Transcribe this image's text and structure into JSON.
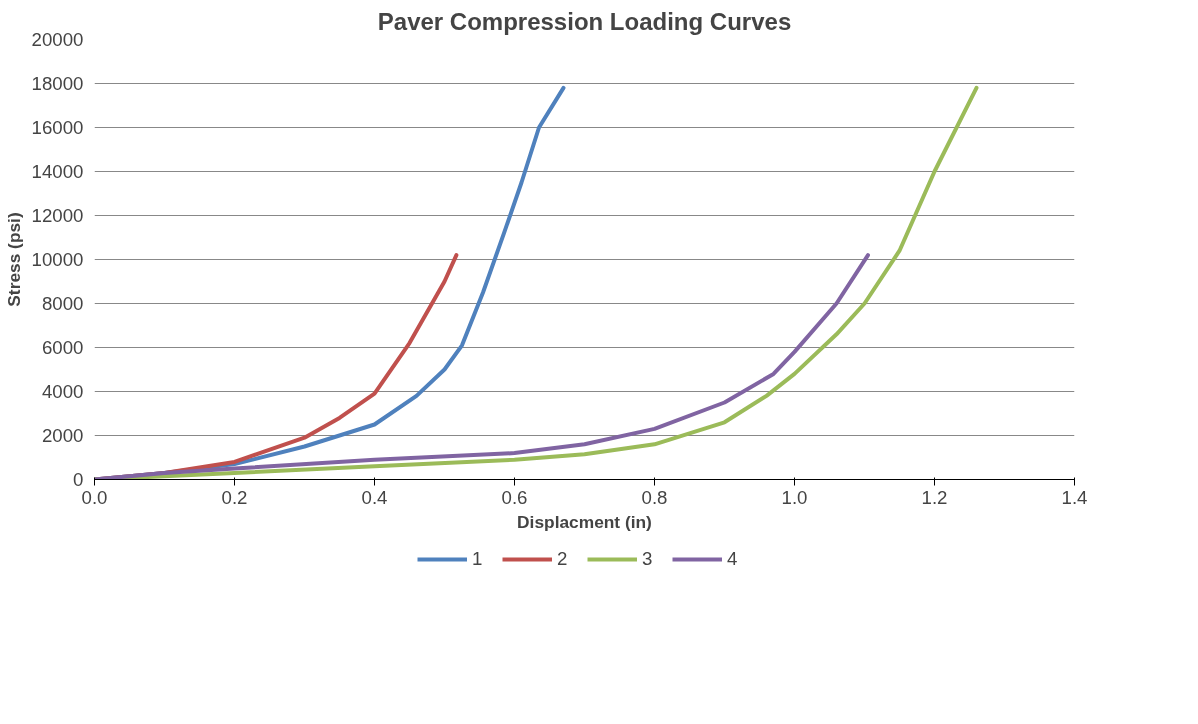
{
  "chart_data": {
    "type": "line",
    "title": "Paver Compression Loading Curves",
    "xlabel": "Displacment (in)",
    "ylabel": "Stress (psi)",
    "xlim": [
      0,
      1.4
    ],
    "ylim": [
      0,
      20000
    ],
    "xticks": [
      {
        "value": 0,
        "label": "0.0"
      },
      {
        "value": 0.2,
        "label": "0.2"
      },
      {
        "value": 0.4,
        "label": "0.4"
      },
      {
        "value": 0.6,
        "label": "0.6"
      },
      {
        "value": 0.8,
        "label": "0.8"
      },
      {
        "value": 1.0,
        "label": "1.0"
      },
      {
        "value": 1.2,
        "label": "1.2"
      },
      {
        "value": 1.4,
        "label": "1.4"
      }
    ],
    "yticks": [
      0,
      2000,
      4000,
      6000,
      8000,
      10000,
      12000,
      14000,
      16000,
      18000,
      20000
    ],
    "grid": "y",
    "legend": "bottom",
    "marker": "none",
    "line_style": "solid",
    "series": [
      {
        "name": "1",
        "color": "#4f81bd",
        "x": [
          0,
          0.1,
          0.2,
          0.3,
          0.4,
          0.46,
          0.5,
          0.525,
          0.555,
          0.585,
          0.61,
          0.635,
          0.67
        ],
        "values": [
          0,
          300,
          700,
          1500,
          2500,
          3800,
          5000,
          6100,
          8500,
          11200,
          13500,
          16000,
          17800
        ]
      },
      {
        "name": "2",
        "color": "#c0504d",
        "x": [
          0,
          0.1,
          0.2,
          0.3,
          0.35,
          0.4,
          0.45,
          0.5,
          0.517
        ],
        "values": [
          0,
          300,
          800,
          1900,
          2800,
          3900,
          6200,
          9000,
          10200
        ]
      },
      {
        "name": "3",
        "color": "#9bbb59",
        "x": [
          0,
          0.2,
          0.4,
          0.6,
          0.7,
          0.8,
          0.9,
          0.96,
          1.0,
          1.06,
          1.1,
          1.15,
          1.2,
          1.26
        ],
        "values": [
          0,
          300,
          600,
          900,
          1150,
          1600,
          2600,
          3800,
          4800,
          6600,
          8000,
          10400,
          14000,
          17800
        ]
      },
      {
        "name": "4",
        "color": "#8064a2",
        "x": [
          0,
          0.1,
          0.2,
          0.4,
          0.6,
          0.7,
          0.8,
          0.9,
          0.97,
          1.0,
          1.06,
          1.105
        ],
        "values": [
          0,
          300,
          500,
          900,
          1200,
          1600,
          2300,
          3500,
          4800,
          5800,
          8000,
          10200
        ]
      }
    ]
  }
}
